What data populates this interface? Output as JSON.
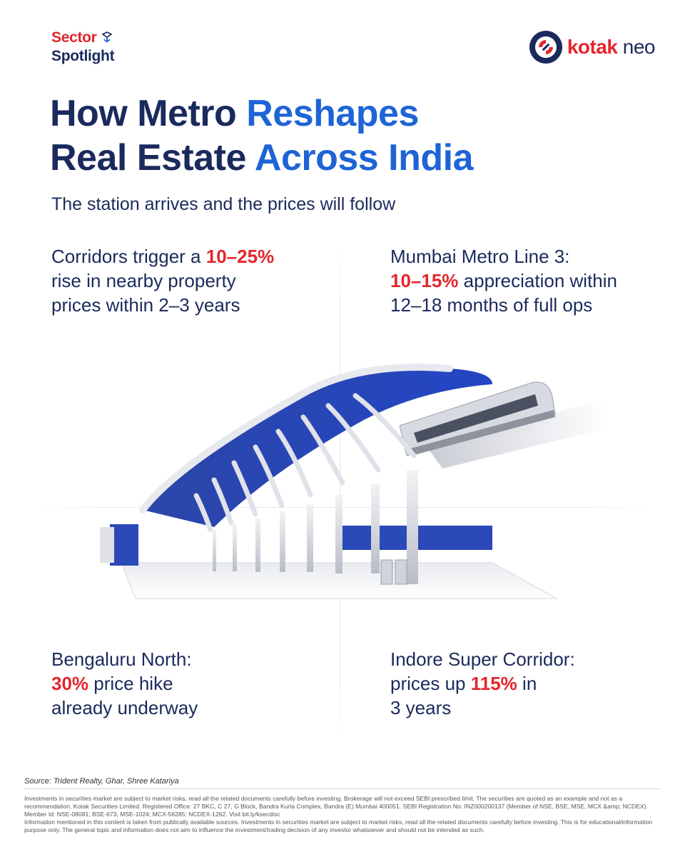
{
  "header": {
    "badge_line1": "Sector",
    "badge_line2": "Spotlight",
    "logo_word": "kotak",
    "logo_suffix": "neo"
  },
  "title": {
    "line1_dark": "How Metro ",
    "line1_blue": "Reshapes",
    "line2_dark": "Real Estate ",
    "line2_blue": "Across India"
  },
  "subtitle": "The station arrives and the prices will follow",
  "stats": {
    "top_left": {
      "pre": "Corridors trigger a ",
      "hl": "10–25%",
      "l2": "rise in nearby property",
      "l3": "prices within 2–3 years"
    },
    "top_right": {
      "l1": "Mumbai Metro Line 3:",
      "hl": "10–15%",
      "post": " appreciation within",
      "l3": "12–18 months of full ops"
    },
    "bottom_left": {
      "l1": "Bengaluru North:",
      "hl": "30%",
      "post": " price hike",
      "l3": "already underway"
    },
    "bottom_right": {
      "l1": "Indore Super Corridor:",
      "pre": "prices up ",
      "hl": "115%",
      "post": " in",
      "l3": "3 years"
    }
  },
  "colors": {
    "navy": "#1b2a5c",
    "blue": "#1e64d6",
    "red": "#e3262d"
  },
  "illustration": {
    "icon": "metro-station-illustration"
  },
  "footer": {
    "source": "Source: Trident Realty, Ghar, Shree Katariya",
    "disclaimer_1": "Investments in securities market are subject to market risks, read all the related documents carefully before investing. Brokerage will not exceed SEBI prescribed limit. The securities are quoted as an example and not as a recommendation. Kotak Securities Limited. Registered Office: 27 BKC, C 27, G Block, Bandra Kurla Complex, Bandra (E) Mumbai 400051. SEBI Registration No: INZ000200137 (Member of NSE, BSE, MSE, MCX &amp; NCDEX). Member Id: NSE-08081; BSE-673; MSE-1024; MCX-56285; NCDEX-1262. Visit bit.ly/ksecdisc",
    "disclaimer_2": "Information mentioned in this content is taken from publically available sources. Investments in securities market are subject to market risks, read all the related documents carefully before investing. This is for educational/information purpose only. The general topic and information does not aim to influence the investment/trading decision of any investor whatsoever and should not be intended as such."
  }
}
